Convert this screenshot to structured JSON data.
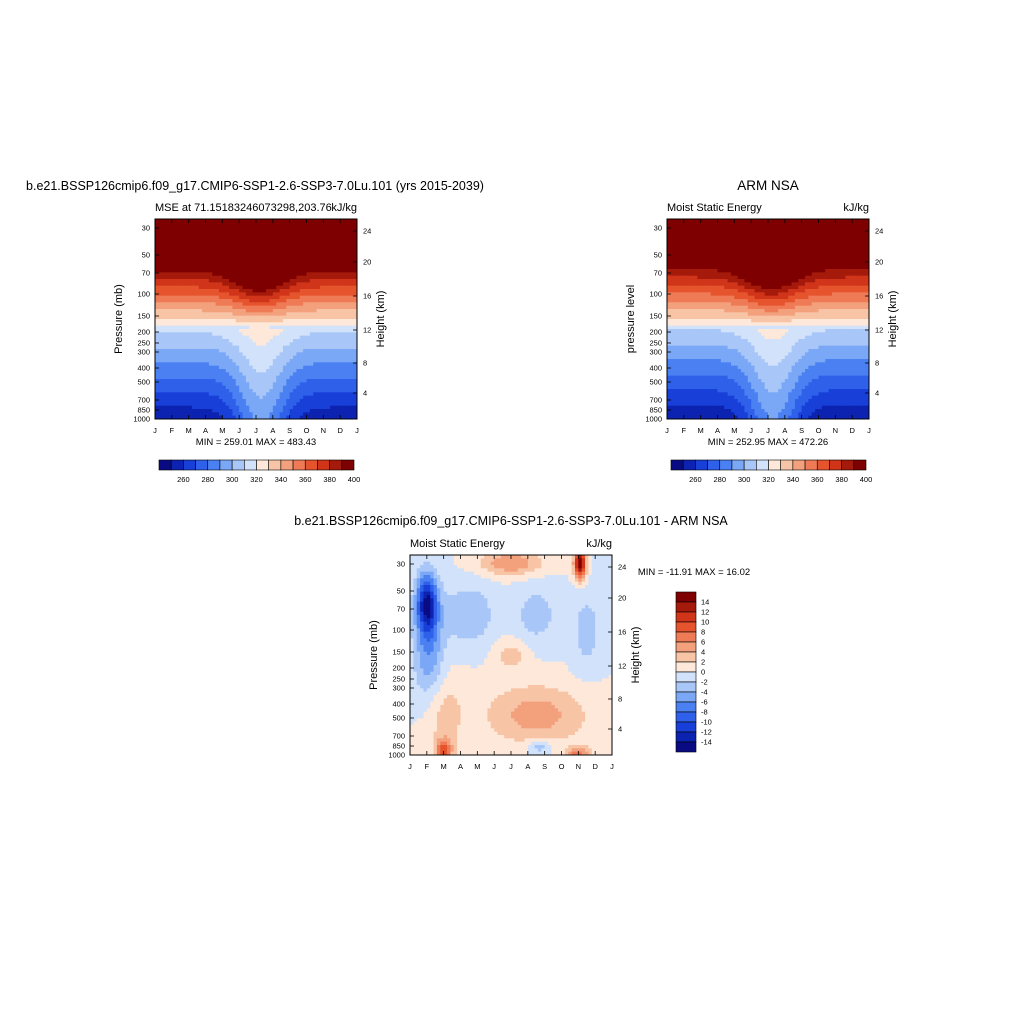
{
  "chart_data": [
    {
      "type": "heatmap",
      "title": "b.e21.BSSP126cmip6.f09_g17.CMIP6-SSP1-2.6-SSP3-7.0Lu.101 (yrs 2015-2039)",
      "subtitle_left": "MSE at 71.15183246073298,203.76",
      "subtitle_right": "kJ/kg",
      "ylabel": "Pressure (mb)",
      "ylabel_right": "Height (km)",
      "x_ticks": [
        "J",
        "F",
        "M",
        "A",
        "M",
        "J",
        "J",
        "A",
        "S",
        "O",
        "N",
        "D",
        "J"
      ],
      "y_ticks": [
        "30",
        "50",
        "70",
        "100",
        "150",
        "200",
        "250",
        "300",
        "400",
        "500",
        "700",
        "850",
        "1000"
      ],
      "y_ticks_right": [
        "4",
        "8",
        "12",
        "16",
        "20",
        "24"
      ],
      "stats_text": "MIN = 259.01 MAX = 483.43",
      "min": 259.01,
      "max": 483.43,
      "colorbar_labels": [
        "260",
        "280",
        "300",
        "320",
        "340",
        "360",
        "380",
        "400"
      ],
      "colorbar_levels": [
        250,
        260,
        270,
        280,
        290,
        300,
        310,
        320,
        330,
        340,
        350,
        360,
        370,
        380,
        390,
        400,
        410
      ]
    },
    {
      "type": "heatmap",
      "title": "ARM NSA",
      "subtitle_left": "Moist Static Energy",
      "subtitle_right": "kJ/kg",
      "ylabel": "pressure level",
      "ylabel_right": "Height (km)",
      "x_ticks": [
        "J",
        "F",
        "M",
        "A",
        "M",
        "J",
        "J",
        "A",
        "S",
        "O",
        "N",
        "D",
        "J"
      ],
      "y_ticks": [
        "30",
        "50",
        "70",
        "100",
        "150",
        "200",
        "250",
        "300",
        "400",
        "500",
        "700",
        "850",
        "1000"
      ],
      "y_ticks_right": [
        "4",
        "8",
        "12",
        "16",
        "20",
        "24"
      ],
      "stats_text": "MIN = 252.95 MAX = 472.26",
      "min": 252.95,
      "max": 472.26,
      "colorbar_labels": [
        "260",
        "280",
        "300",
        "320",
        "340",
        "360",
        "380",
        "400"
      ],
      "colorbar_levels": [
        250,
        260,
        270,
        280,
        290,
        300,
        310,
        320,
        330,
        340,
        350,
        360,
        370,
        380,
        390,
        400,
        410
      ]
    },
    {
      "type": "heatmap",
      "title": "b.e21.BSSP126cmip6.f09_g17.CMIP6-SSP1-2.6-SSP3-7.0Lu.101 - ARM NSA",
      "subtitle_left": "Moist Static Energy",
      "subtitle_right": "kJ/kg",
      "ylabel": "Pressure (mb)",
      "ylabel_right": "Height (km)",
      "x_ticks": [
        "J",
        "F",
        "M",
        "A",
        "M",
        "J",
        "J",
        "A",
        "S",
        "O",
        "N",
        "D",
        "J"
      ],
      "y_ticks": [
        "30",
        "50",
        "70",
        "100",
        "150",
        "200",
        "250",
        "300",
        "400",
        "500",
        "700",
        "850",
        "1000"
      ],
      "y_ticks_right": [
        "4",
        "8",
        "12",
        "16",
        "20",
        "24"
      ],
      "stats_text": "MIN = -11.91 MAX =  16.02",
      "min": -11.91,
      "max": 16.02,
      "colorbar_labels": [
        "14",
        "12",
        "10",
        "8",
        "6",
        "4",
        "2",
        "0",
        "-2",
        "-4",
        "-6",
        "-8",
        "-10",
        "-12",
        "-14"
      ],
      "colorbar_levels": [
        -16,
        -14,
        -12,
        -10,
        -8,
        -6,
        -4,
        -2,
        0,
        2,
        4,
        6,
        8,
        10,
        12,
        14,
        16
      ]
    }
  ],
  "colors": {
    "palette": [
      "#0a0a82",
      "#0c22b0",
      "#1840d8",
      "#2e60ea",
      "#4a80f2",
      "#7aa8f6",
      "#a8c6f8",
      "#d2e2fa",
      "#fde8da",
      "#f8c4a6",
      "#f3a07c",
      "#ee7a56",
      "#e6542e",
      "#d0351a",
      "#a51a0a",
      "#7e0000"
    ]
  }
}
